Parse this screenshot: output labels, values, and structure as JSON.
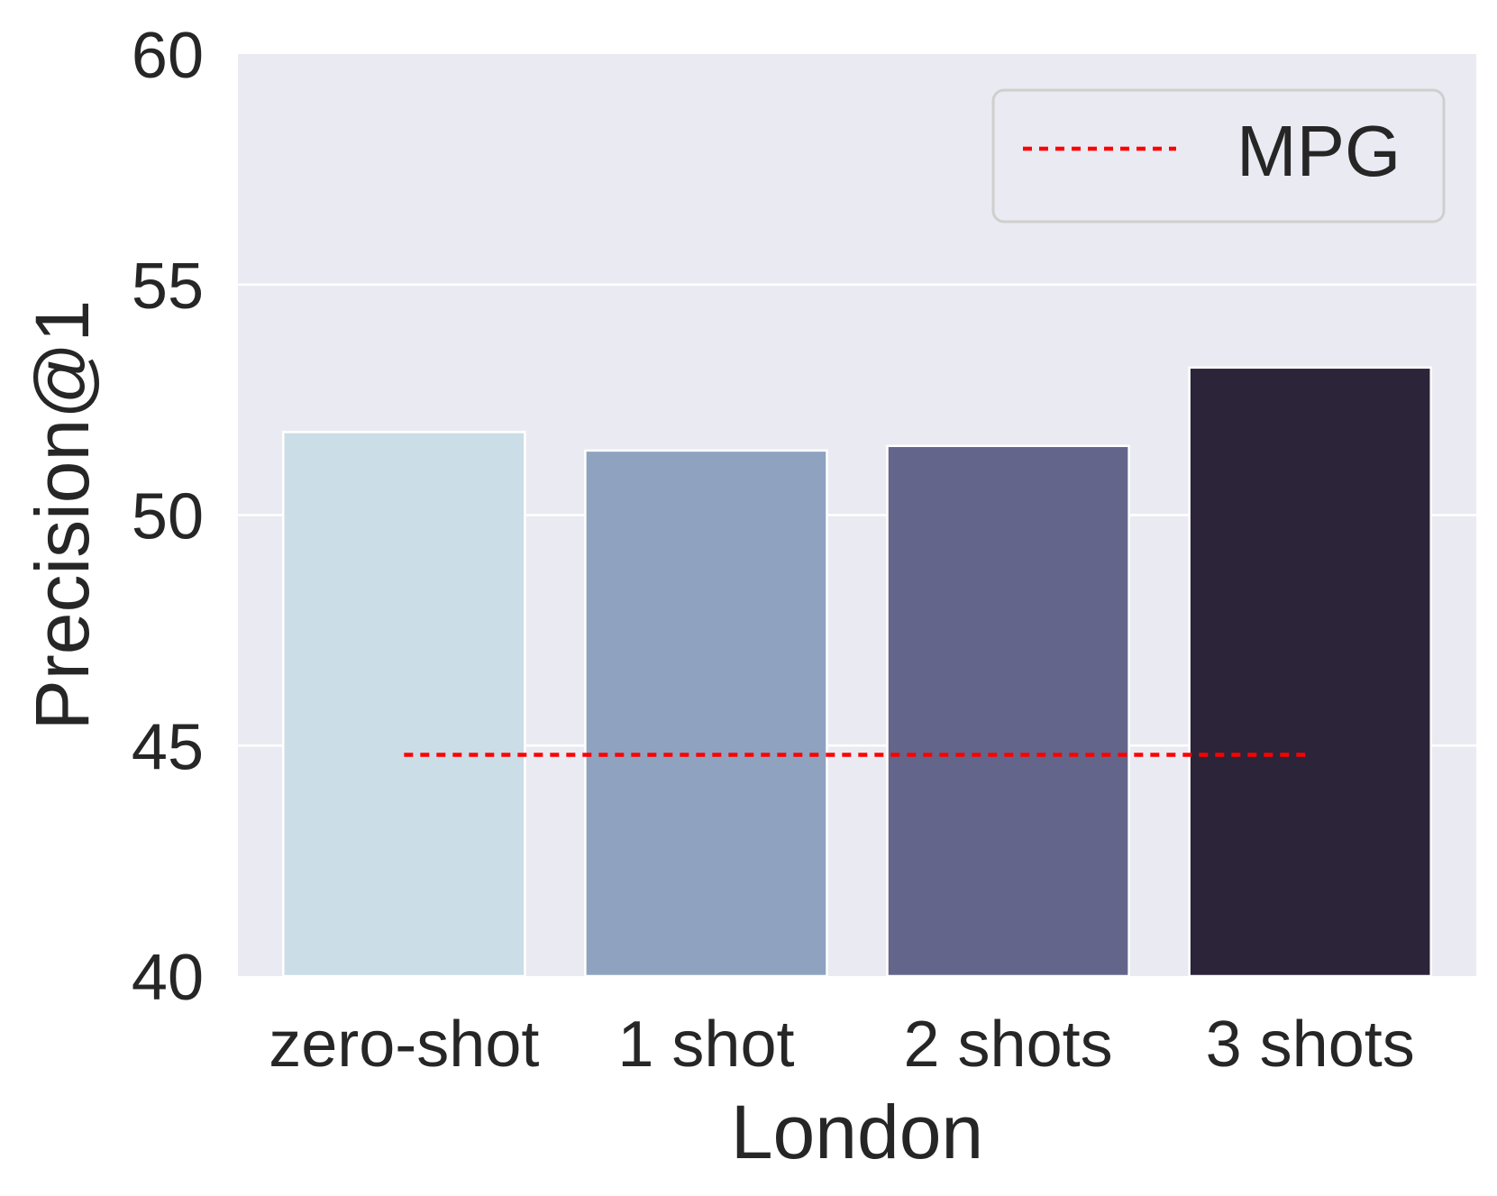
{
  "chart_data": {
    "type": "bar",
    "xlabel": "London",
    "ylabel": "Precision@1",
    "categories": [
      "zero-shot",
      "1 shot",
      "2 shots",
      "3 shots"
    ],
    "values": [
      51.8,
      51.4,
      51.5,
      53.2
    ],
    "bar_colors": [
      "#cbdde7",
      "#8fa3c0",
      "#63668a",
      "#2c2439"
    ],
    "ylim": [
      40,
      60
    ],
    "yticks": [
      "40",
      "45",
      "50",
      "55",
      "60"
    ],
    "grid": true,
    "background_color": "#eaeaf2",
    "reference_line": {
      "name": "MPG",
      "value": 44.8,
      "color": "#ff0000",
      "style": "dotted"
    },
    "legend": {
      "position": "top-right",
      "entries": [
        "MPG"
      ]
    }
  }
}
